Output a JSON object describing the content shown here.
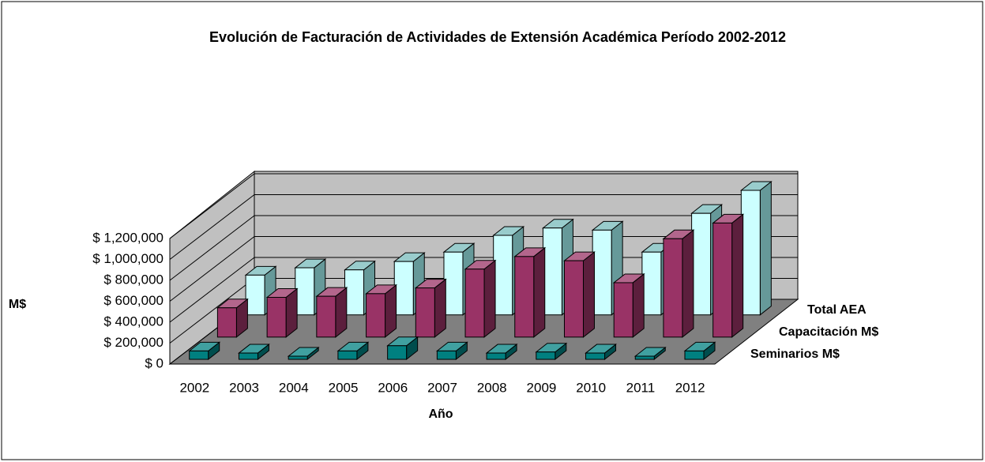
{
  "chart_data": {
    "type": "bar3d",
    "title": "Evolución de Facturación de Actividades de Extensión Académica  Período 2002-2012",
    "y_axis_label": "M$",
    "x_axis_label": "Año",
    "categories": [
      "2002",
      "2003",
      "2004",
      "2005",
      "2006",
      "2007",
      "2008",
      "2009",
      "2010",
      "2011",
      "2012"
    ],
    "series": [
      {
        "name": "Seminarios M$",
        "color": "#008080",
        "values": [
          80000,
          60000,
          30000,
          80000,
          130000,
          80000,
          60000,
          70000,
          60000,
          30000,
          80000
        ]
      },
      {
        "name": "Capacitación M$",
        "color": "#993366",
        "values": [
          280000,
          380000,
          390000,
          415000,
          470000,
          650000,
          770000,
          730000,
          520000,
          940000,
          1090000
        ]
      },
      {
        "name": "Total AEA",
        "color": "#ccffff",
        "values": [
          380000,
          450000,
          430000,
          510000,
          600000,
          760000,
          830000,
          810000,
          600000,
          970000,
          1190000
        ]
      }
    ],
    "ylim": [
      0,
      1200000
    ],
    "yticks": [
      {
        "value": 0,
        "label": "$ 0"
      },
      {
        "value": 200000,
        "label": "$ 200,000"
      },
      {
        "value": 400000,
        "label": "$ 400,000"
      },
      {
        "value": 600000,
        "label": "$ 600,000"
      },
      {
        "value": 800000,
        "label": "$ 800,000"
      },
      {
        "value": 1000000,
        "label": "$ 1,000,000"
      },
      {
        "value": 1200000,
        "label": "$ 1,200,000"
      }
    ],
    "grid": true
  }
}
